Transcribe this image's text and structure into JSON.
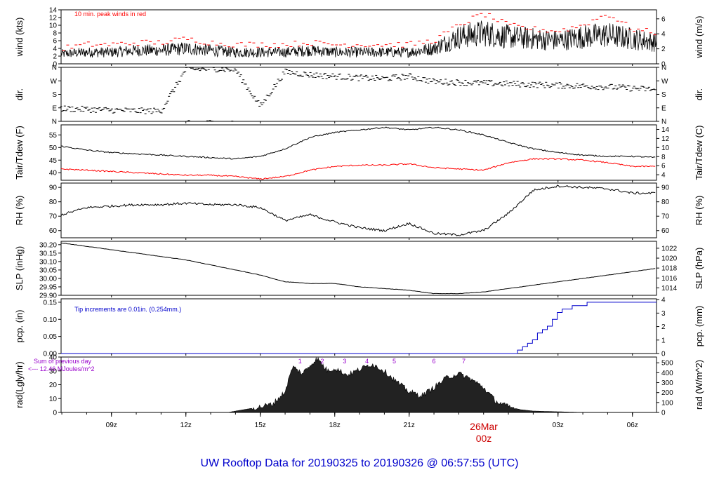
{
  "footer_title": "UW Rooftop Data for 20190325  to  20190326 @ 06:57:55  (UTC)",
  "date_marker": {
    "label": "26Mar",
    "sub": "00z"
  },
  "colors": {
    "main": "#000000",
    "gust": "#ff0000",
    "dew": "#ff0000",
    "precip": "#0000cc",
    "annotation_blue": "#0000cc",
    "rad_note": "#9900cc"
  },
  "x_axis": {
    "ticks": [
      {
        "hour": 9,
        "label": "09z"
      },
      {
        "hour": 12,
        "label": "12z"
      },
      {
        "hour": 15,
        "label": "15z"
      },
      {
        "hour": 18,
        "label": "18z"
      },
      {
        "hour": 21,
        "label": "21z"
      },
      {
        "hour": 27,
        "label": "03z"
      },
      {
        "hour": 30,
        "label": "06z"
      }
    ],
    "range_hours": [
      6.97,
      30.97
    ]
  },
  "panels": {
    "wind": {
      "left_label": "wind (kts)",
      "right_label": "wind (m/s)",
      "note": "10 min. peak winds in red",
      "left_ticks": [
        "0",
        "2",
        "4",
        "6",
        "8",
        "10",
        "12",
        "14"
      ],
      "right_ticks": [
        "0",
        "2",
        "4",
        "6"
      ]
    },
    "dir": {
      "left_label": "dir.",
      "right_label": "dir.",
      "ticks": [
        "N",
        "E",
        "S",
        "W",
        "N"
      ]
    },
    "temp": {
      "left_label": "Tair/Tdew (F)",
      "right_label": "Tair/Tdew (C)",
      "left_ticks": [
        "40",
        "45",
        "50",
        "55"
      ],
      "right_ticks": [
        "4",
        "6",
        "8",
        "10",
        "12",
        "14"
      ]
    },
    "rh": {
      "left_label": "RH (%)",
      "right_label": "RH (%)",
      "left_ticks": [
        "60",
        "70",
        "80",
        "90"
      ],
      "right_ticks": [
        "60",
        "70",
        "80",
        "90"
      ]
    },
    "slp": {
      "left_label": "SLP (inHg)",
      "right_label": "SLP (hPa)",
      "left_ticks": [
        "29.90",
        "29.95",
        "30.00",
        "30.05",
        "30.10",
        "30.15",
        "30.20"
      ],
      "right_ticks": [
        "1014",
        "1016",
        "1018",
        "1020",
        "1022"
      ]
    },
    "pcp": {
      "left_label": "pcp. (in)",
      "right_label": "pcp. (mm)",
      "note": "Tip increments are 0.01in. (0.254mm.)",
      "left_ticks": [
        "0.00",
        "0.05",
        "0.10",
        "0.15"
      ],
      "right_ticks": [
        "0",
        "1",
        "2",
        "3",
        "4"
      ]
    },
    "rad": {
      "left_label": "rad(Lgly/hr)",
      "right_label": "rad (W/m^2)",
      "note_line1": "Sum of previous day",
      "note_line2": "<--- 12.46 MJoules/m^2",
      "left_ticks": [
        "0",
        "10",
        "20",
        "30",
        "40"
      ],
      "right_ticks": [
        "0",
        "100",
        "200",
        "300",
        "400",
        "500"
      ],
      "markers": [
        "1",
        "2",
        "3",
        "4",
        "5",
        "6",
        "7"
      ]
    }
  },
  "chart_data": [
    {
      "type": "line",
      "title": "",
      "ylabel": "wind (kts)",
      "ylim": [
        0,
        14
      ],
      "x_hours": [
        7,
        8,
        9,
        10,
        11,
        12,
        13,
        14,
        15,
        16,
        17,
        18,
        19,
        20,
        21,
        22,
        23,
        24,
        25,
        26,
        27,
        28,
        29,
        30,
        31
      ],
      "series": [
        {
          "name": "wind",
          "values": [
            2.6,
            3,
            3,
            3.5,
            3.5,
            4,
            3.5,
            3,
            3,
            3,
            3.5,
            3,
            3,
            3,
            3,
            4,
            7,
            8,
            7,
            6.5,
            6,
            7,
            7.5,
            6.5,
            5.5
          ]
        },
        {
          "name": "10 min. peak winds",
          "values": [
            4,
            5,
            5,
            5.5,
            5.5,
            6.5,
            5.5,
            5,
            5,
            5,
            5.5,
            5,
            5,
            5,
            5,
            6,
            10,
            13,
            10,
            9,
            8.5,
            10,
            13,
            9,
            8
          ]
        }
      ]
    },
    {
      "type": "scatter",
      "title": "",
      "ylabel": "dir.",
      "ylim": [
        0,
        360
      ],
      "x_hours": [
        7,
        8,
        9,
        10,
        11,
        12,
        13,
        14,
        15,
        16,
        17,
        18,
        19,
        20,
        21,
        22,
        23,
        24,
        25,
        26,
        27,
        28,
        29,
        30,
        31
      ],
      "series": [
        {
          "name": "dir",
          "values": [
            85,
            80,
            75,
            70,
            70,
            345,
            350,
            345,
            100,
            330,
            310,
            300,
            290,
            285,
            300,
            265,
            260,
            255,
            250,
            245,
            240,
            235,
            230,
            220,
            210
          ]
        }
      ]
    },
    {
      "type": "line",
      "title": "",
      "ylabel": "Tair/Tdew (F)",
      "ylim": [
        37,
        59
      ],
      "x_hours": [
        7,
        8,
        9,
        10,
        11,
        12,
        13,
        14,
        15,
        16,
        17,
        18,
        19,
        20,
        21,
        22,
        23,
        24,
        25,
        26,
        27,
        28,
        29,
        30,
        31
      ],
      "series": [
        {
          "name": "Tair",
          "values": [
            50.5,
            49,
            48,
            47.5,
            47,
            46.5,
            46,
            45.5,
            46.5,
            49.5,
            54,
            56,
            57,
            58,
            57,
            58,
            57,
            55,
            52,
            49.5,
            48,
            47,
            46.5,
            46.5,
            46
          ]
        },
        {
          "name": "Tdew",
          "values": [
            41.5,
            41,
            40.5,
            40,
            39.5,
            39,
            39,
            38.5,
            37.5,
            38.5,
            41,
            42.5,
            43,
            43,
            43.5,
            42,
            41.5,
            41,
            44,
            45.5,
            45.5,
            45,
            44,
            42.5,
            42.5
          ]
        }
      ]
    },
    {
      "type": "line",
      "title": "",
      "ylabel": "RH (%)",
      "ylim": [
        55,
        93
      ],
      "x_hours": [
        7,
        8,
        9,
        10,
        11,
        12,
        13,
        14,
        15,
        16,
        17,
        18,
        19,
        20,
        21,
        22,
        23,
        24,
        25,
        26,
        27,
        28,
        29,
        30,
        31
      ],
      "series": [
        {
          "name": "RH",
          "values": [
            71,
            76,
            77,
            78,
            78,
            79,
            78,
            78,
            76,
            67,
            71,
            66,
            62,
            60,
            65,
            58,
            57,
            60,
            72,
            88,
            91,
            90,
            89,
            86,
            86
          ]
        }
      ]
    },
    {
      "type": "line",
      "title": "",
      "ylabel": "SLP (inHg)",
      "ylim": [
        29.9,
        30.22
      ],
      "x_hours": [
        7,
        8,
        9,
        10,
        11,
        12,
        13,
        14,
        15,
        16,
        17,
        18,
        19,
        20,
        21,
        22,
        23,
        24,
        25,
        26,
        27,
        28,
        29,
        30,
        31
      ],
      "series": [
        {
          "name": "SLP",
          "values": [
            30.21,
            30.19,
            30.17,
            30.15,
            30.13,
            30.11,
            30.08,
            30.05,
            30.02,
            29.98,
            29.97,
            29.97,
            29.95,
            29.94,
            29.93,
            29.91,
            29.91,
            29.92,
            29.94,
            29.96,
            29.98,
            30.0,
            30.02,
            30.04,
            30.06
          ]
        }
      ]
    },
    {
      "type": "line",
      "title": "",
      "ylabel": "pcp. (in)",
      "ylim": [
        0,
        0.16
      ],
      "x_hours": [
        7,
        8,
        9,
        10,
        11,
        12,
        13,
        14,
        15,
        16,
        17,
        18,
        19,
        20,
        21,
        22,
        23,
        24,
        25,
        25.5,
        26,
        26.5,
        27,
        28,
        29,
        30,
        31
      ],
      "series": [
        {
          "name": "pcp",
          "values": [
            0,
            0,
            0,
            0,
            0,
            0,
            0,
            0,
            0,
            0,
            0,
            0,
            0,
            0,
            0,
            0,
            0,
            0,
            0,
            0.02,
            0.05,
            0.08,
            0.13,
            0.15,
            0.15,
            0.15,
            0.15
          ]
        }
      ]
    },
    {
      "type": "area",
      "title": "",
      "ylabel": "rad(Lgly/hr)",
      "ylim": [
        0,
        40
      ],
      "x_hours": [
        7,
        8,
        9,
        10,
        11,
        12,
        13,
        13.7,
        14,
        15,
        15.5,
        16,
        16.3,
        16.7,
        17,
        17.3,
        17.7,
        18,
        18.5,
        19,
        19.5,
        20,
        20.5,
        21,
        21.5,
        22,
        22.5,
        23,
        23.5,
        24,
        24.5,
        25,
        25.5,
        26,
        27,
        28,
        31
      ],
      "series": [
        {
          "name": "rad",
          "values": [
            0,
            0,
            0,
            0,
            0,
            0,
            0,
            0,
            1,
            4,
            6,
            15,
            33,
            28,
            34,
            39,
            30,
            32,
            27,
            31,
            35,
            30,
            22,
            15,
            12,
            18,
            25,
            28,
            24,
            18,
            8,
            4,
            2,
            1,
            0.5,
            0,
            0
          ]
        }
      ]
    }
  ]
}
